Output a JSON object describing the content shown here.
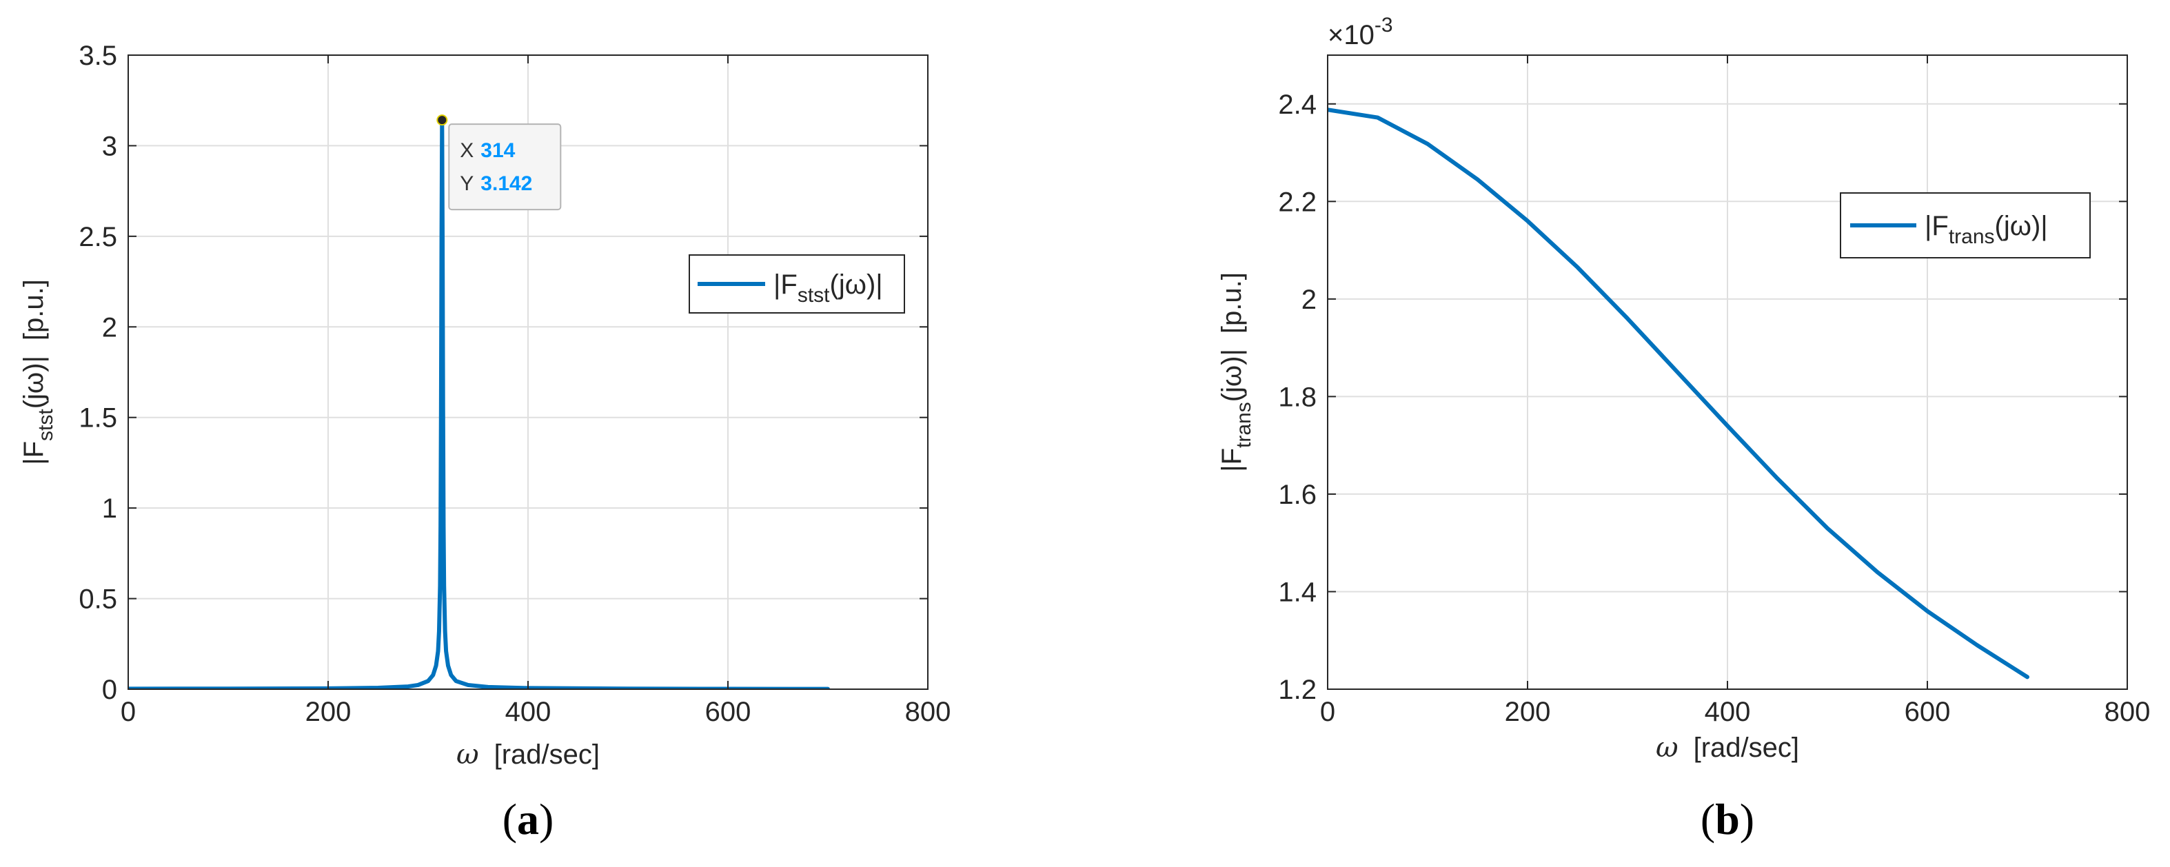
{
  "chart_data": [
    {
      "type": "line",
      "panel_label": "a",
      "xlabel": "ω  [rad/sec]",
      "xlabel_unit": "[rad/sec]",
      "ylabel_unit": "[p.u.]",
      "xlim": [
        0,
        800
      ],
      "ylim": [
        0,
        3.5
      ],
      "x_ticks": [
        0,
        200,
        400,
        600,
        800
      ],
      "y_ticks": [
        0,
        0.5,
        1,
        1.5,
        2,
        2.5,
        3,
        3.5
      ],
      "x_tick_labels": [
        "0",
        "200",
        "400",
        "600",
        "800"
      ],
      "y_tick_labels": [
        "0",
        "0.5",
        "1",
        "1.5",
        "2",
        "2.5",
        "3",
        "3.5"
      ],
      "grid": true,
      "legend_position": "upper-right",
      "color": "#0072bd",
      "series": [
        {
          "name": "|Fstst(jω)|",
          "name_main": "|F",
          "name_sub": "stst",
          "name_tail": "(jω)|",
          "x": [
            0,
            100,
            200,
            250,
            280,
            290,
            300,
            305,
            308,
            310,
            311,
            312,
            312.5,
            313,
            313.5,
            314,
            314.5,
            315,
            315.5,
            316,
            317,
            318,
            320,
            323,
            328,
            340,
            360,
            400,
            500,
            600,
            700
          ],
          "y": [
            0.0025,
            0.0028,
            0.0042,
            0.0075,
            0.015,
            0.023,
            0.045,
            0.078,
            0.13,
            0.21,
            0.32,
            0.57,
            0.9,
            1.55,
            2.5,
            3.142,
            2.5,
            1.55,
            0.9,
            0.57,
            0.32,
            0.21,
            0.13,
            0.078,
            0.045,
            0.023,
            0.012,
            0.006,
            0.003,
            0.0018,
            0.0012
          ]
        }
      ],
      "datatip": {
        "x_label": "X",
        "x_value": "314",
        "y_label": "Y",
        "y_value": "3.142",
        "x": 314,
        "y": 3.142
      }
    },
    {
      "type": "line",
      "panel_label": "b",
      "xlabel": "ω  [rad/sec]",
      "xlabel_unit": "[rad/sec]",
      "ylabel_unit": "[p.u.]",
      "xlim": [
        0,
        800
      ],
      "ylim": [
        1.2,
        2.5
      ],
      "y_multiplier": "×10",
      "y_multiplier_exp": "-3",
      "x_ticks": [
        0,
        200,
        400,
        600,
        800
      ],
      "y_ticks": [
        1.2,
        1.4,
        1.6,
        1.8,
        2.0,
        2.2,
        2.4
      ],
      "x_tick_labels": [
        "0",
        "200",
        "400",
        "600",
        "800"
      ],
      "y_tick_labels": [
        "1.2",
        "1.4",
        "1.6",
        "1.8",
        "2",
        "2.2",
        "2.4"
      ],
      "grid": true,
      "legend_position": "upper-right",
      "color": "#0072bd",
      "series": [
        {
          "name": "|Ftrans(jω)|",
          "name_main": "|F",
          "name_sub": "trans",
          "name_tail": "(jω)|",
          "x": [
            0,
            50,
            100,
            150,
            200,
            250,
            300,
            350,
            400,
            450,
            500,
            550,
            600,
            650,
            700
          ],
          "y": [
            2.388,
            2.372,
            2.318,
            2.245,
            2.16,
            2.065,
            1.96,
            1.85,
            1.74,
            1.632,
            1.53,
            1.44,
            1.36,
            1.29,
            1.225
          ]
        }
      ]
    }
  ]
}
